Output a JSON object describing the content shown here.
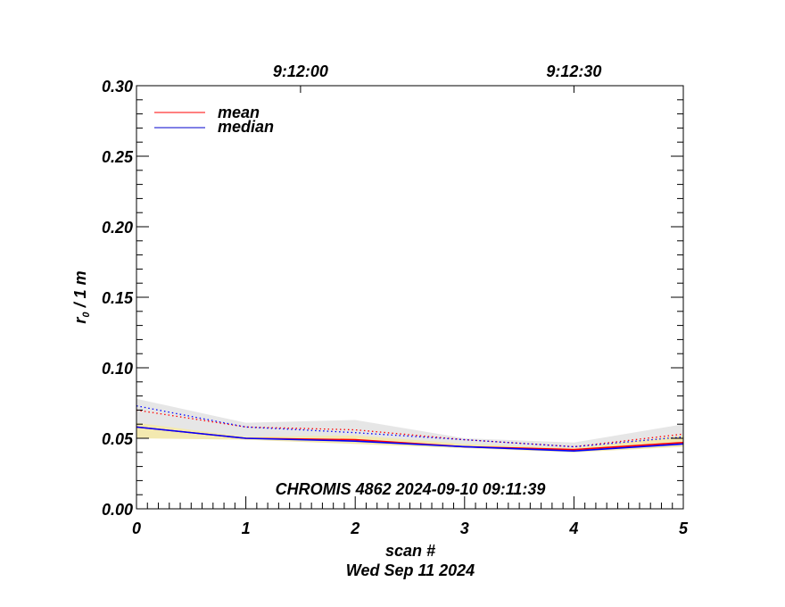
{
  "chart_data": {
    "type": "line",
    "title": "",
    "annotation": "CHROMIS 4862 2024-09-10 09:11:39",
    "xlabel": "scan #",
    "xlabel2": "Wed Sep 11 2024",
    "ylabel_main": "r",
    "ylabel_sub": "0",
    "ylabel_rest": " / 1 m",
    "xlim": [
      0,
      5
    ],
    "ylim": [
      0,
      0.3
    ],
    "x": [
      0,
      1,
      2,
      3,
      4,
      5
    ],
    "xticks": [
      "0",
      "1",
      "2",
      "3",
      "4",
      "5"
    ],
    "yticks": [
      "0.00",
      "0.05",
      "0.10",
      "0.15",
      "0.20",
      "0.25",
      "0.30"
    ],
    "top_axis_ticks": [
      {
        "x": 1.5,
        "label": "9:12:00"
      },
      {
        "x": 4.0,
        "label": "9:12:30"
      }
    ],
    "legend": {
      "placement": "top-left",
      "entries": [
        {
          "name": "mean",
          "color": "#ff0000"
        },
        {
          "name": "median",
          "color": "#0000cc"
        }
      ]
    },
    "bands": [
      {
        "name": "gray-range",
        "color": "#e6e6e6",
        "upper": [
          0.078,
          0.061,
          0.063,
          0.05,
          0.047,
          0.06
        ],
        "lower": [
          0.055,
          0.049,
          0.05,
          0.046,
          0.042,
          0.05
        ]
      },
      {
        "name": "yellow-range",
        "color": "#f3e9b0",
        "upper": [
          0.061,
          0.051,
          0.052,
          0.046,
          0.043,
          0.052
        ],
        "lower": [
          0.05,
          0.049,
          0.046,
          0.043,
          0.04,
          0.044
        ]
      }
    ],
    "series": [
      {
        "name": "mean-dotted",
        "color": "#ff0000",
        "style": "dotted",
        "values": [
          0.07,
          0.058,
          0.056,
          0.049,
          0.044,
          0.053
        ]
      },
      {
        "name": "median-dotted",
        "color": "#0000ff",
        "style": "dotted",
        "values": [
          0.073,
          0.058,
          0.054,
          0.049,
          0.044,
          0.051
        ]
      },
      {
        "name": "mean",
        "color": "#ff0000",
        "style": "solid",
        "values": [
          0.058,
          0.05,
          0.049,
          0.044,
          0.042,
          0.047
        ]
      },
      {
        "name": "median",
        "color": "#0000ff",
        "style": "solid",
        "values": [
          0.058,
          0.05,
          0.048,
          0.044,
          0.041,
          0.046
        ]
      }
    ]
  }
}
